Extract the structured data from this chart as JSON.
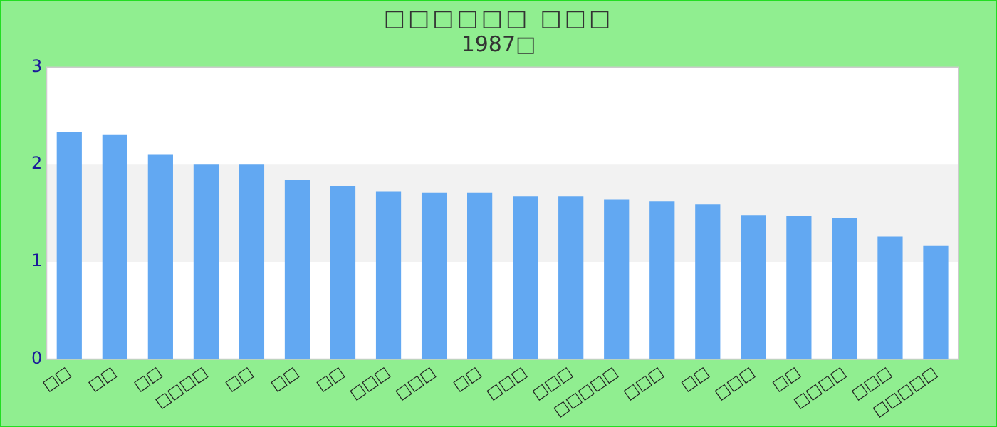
{
  "chart_data": {
    "type": "bar",
    "title": "□□□□□□ □□□",
    "subtitle": "1987□",
    "categories": [
      "□□",
      "□□",
      "□□",
      "□□□□",
      "□□",
      "□□",
      "□□",
      "□□□",
      "□□□",
      "□□",
      "□□□",
      "□□□",
      "□□□□□",
      "□□□",
      "□□",
      "□□□",
      "□□",
      "□□□□",
      "□□□",
      "□□□□□"
    ],
    "values": [
      2.33,
      2.31,
      2.1,
      2.0,
      2.0,
      1.84,
      1.78,
      1.72,
      1.71,
      1.71,
      1.67,
      1.67,
      1.64,
      1.62,
      1.59,
      1.48,
      1.47,
      1.45,
      1.26,
      1.17
    ],
    "color": "#62a8f2",
    "ylim": [
      0,
      3
    ],
    "yticks": [
      0,
      1,
      2,
      3
    ],
    "grid": false,
    "bands": [
      {
        "axis": "y",
        "from": 1,
        "to": 2,
        "color": "#f2f2f2"
      }
    ]
  }
}
